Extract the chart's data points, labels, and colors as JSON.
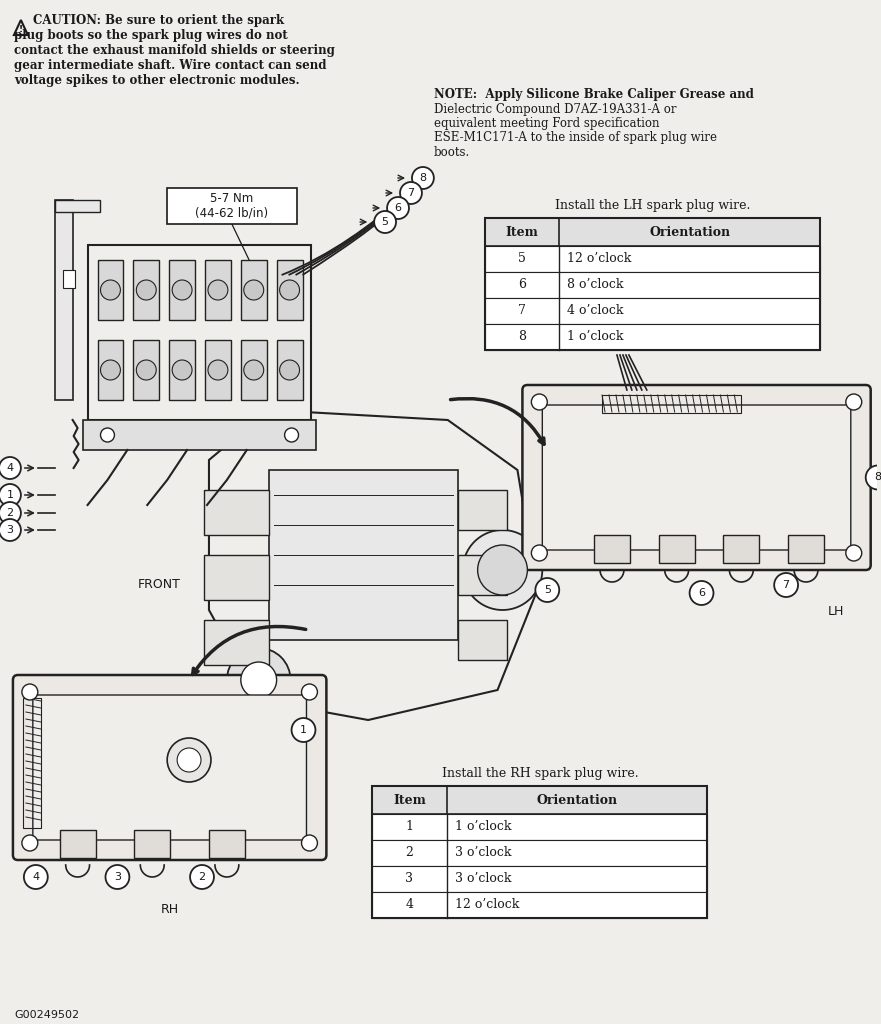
{
  "bg_color": "#f0eeeb",
  "caution_lines": [
    "CAUTION: Be sure to orient the spark",
    "plug boots so the spark plug wires do not",
    "contact the exhaust manifold shields or steering",
    "gear intermediate shaft. Wire contact can send",
    "voltage spikes to other electronic modules."
  ],
  "note_lines": [
    "NOTE:  Apply Silicone Brake Caliper Grease and",
    "Dielectric Compound D7AZ-19A331-A or",
    "equivalent meeting Ford specification",
    "ESE-M1C171-A to the inside of spark plug wire",
    "boots."
  ],
  "lh_title": "Install the LH spark plug wire.",
  "lh_headers": [
    "Item",
    "Orientation"
  ],
  "lh_rows": [
    [
      "5",
      "12 o’clock"
    ],
    [
      "6",
      "8 o’clock"
    ],
    [
      "7",
      "4 o’clock"
    ],
    [
      "8",
      "1 o’clock"
    ]
  ],
  "rh_title": "Install the RH spark plug wire.",
  "rh_headers": [
    "Item",
    "Orientation"
  ],
  "rh_rows": [
    [
      "1",
      "1 o’clock"
    ],
    [
      "2",
      "3 o’clock"
    ],
    [
      "3",
      "3 o’clock"
    ],
    [
      "4",
      "12 o’clock"
    ]
  ],
  "torque": "5-7 Nm\n(44-62 lb/in)",
  "front_label": "FRONT",
  "lh_label": "LH",
  "rh_label": "RH",
  "code": "G00249502",
  "tc": "#1a1a1a",
  "lc": "#222222"
}
